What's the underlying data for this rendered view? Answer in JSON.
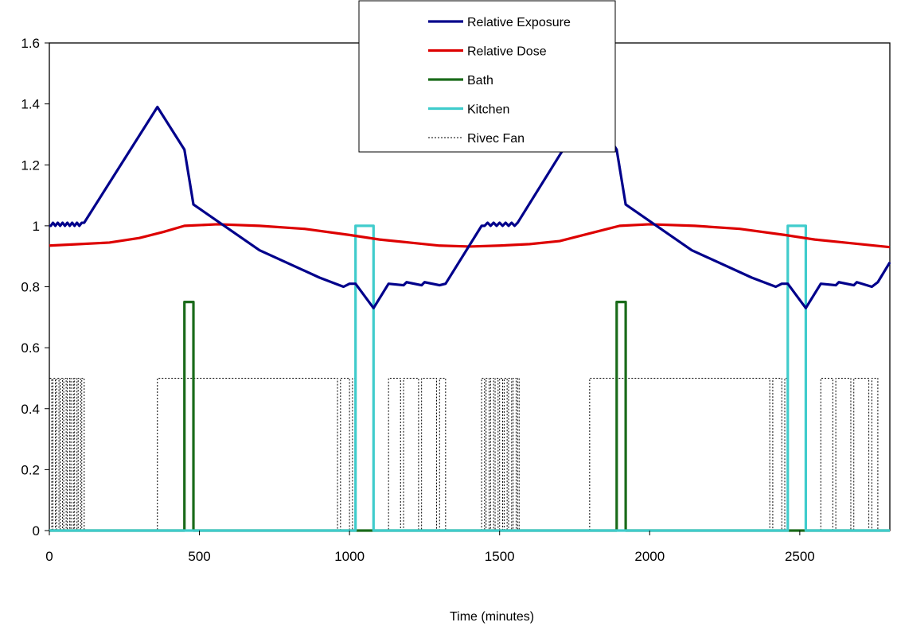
{
  "chart_data": {
    "type": "line",
    "title": "",
    "xlabel": "Time (minutes)",
    "ylabel": "",
    "xlim": [
      0,
      2800
    ],
    "ylim": [
      0,
      1.6
    ],
    "x_ticks": [
      0,
      500,
      1000,
      1500,
      2000,
      2500
    ],
    "y_ticks": [
      0,
      0.2,
      0.4,
      0.6,
      0.8,
      1,
      1.2,
      1.4,
      1.6
    ],
    "grid": false,
    "legend_position": "top-center",
    "series": [
      {
        "name": "Relative Exposure",
        "color": "#00008B",
        "style": "solid",
        "points": [
          [
            0,
            1.0
          ],
          [
            5,
            1.0
          ],
          [
            12,
            1.01
          ],
          [
            20,
            1.0
          ],
          [
            28,
            1.01
          ],
          [
            36,
            1.0
          ],
          [
            44,
            1.01
          ],
          [
            52,
            1.0
          ],
          [
            60,
            1.01
          ],
          [
            68,
            1.0
          ],
          [
            76,
            1.01
          ],
          [
            84,
            1.0
          ],
          [
            92,
            1.01
          ],
          [
            100,
            1.0
          ],
          [
            108,
            1.01
          ],
          [
            116,
            1.01
          ],
          [
            360,
            1.39
          ],
          [
            450,
            1.25
          ],
          [
            480,
            1.07
          ],
          [
            700,
            0.92
          ],
          [
            900,
            0.83
          ],
          [
            980,
            0.8
          ],
          [
            1000,
            0.81
          ],
          [
            1020,
            0.81
          ],
          [
            1080,
            0.73
          ],
          [
            1130,
            0.81
          ],
          [
            1180,
            0.805
          ],
          [
            1190,
            0.815
          ],
          [
            1240,
            0.805
          ],
          [
            1250,
            0.815
          ],
          [
            1300,
            0.805
          ],
          [
            1320,
            0.81
          ],
          [
            1440,
            1.0
          ],
          [
            1450,
            1.0
          ],
          [
            1460,
            1.01
          ],
          [
            1470,
            1.0
          ],
          [
            1480,
            1.01
          ],
          [
            1490,
            1.0
          ],
          [
            1500,
            1.01
          ],
          [
            1510,
            1.0
          ],
          [
            1520,
            1.01
          ],
          [
            1530,
            1.0
          ],
          [
            1540,
            1.01
          ],
          [
            1550,
            1.0
          ],
          [
            1560,
            1.01
          ],
          [
            1800,
            1.39
          ],
          [
            1890,
            1.25
          ],
          [
            1920,
            1.07
          ],
          [
            2140,
            0.92
          ],
          [
            2340,
            0.83
          ],
          [
            2420,
            0.8
          ],
          [
            2440,
            0.81
          ],
          [
            2460,
            0.81
          ],
          [
            2520,
            0.73
          ],
          [
            2570,
            0.81
          ],
          [
            2620,
            0.805
          ],
          [
            2630,
            0.815
          ],
          [
            2680,
            0.805
          ],
          [
            2690,
            0.815
          ],
          [
            2740,
            0.8
          ],
          [
            2760,
            0.815
          ],
          [
            2800,
            0.88
          ]
        ]
      },
      {
        "name": "Relative Dose",
        "color": "#DD0000",
        "style": "solid",
        "points": [
          [
            0,
            0.935
          ],
          [
            100,
            0.94
          ],
          [
            200,
            0.945
          ],
          [
            300,
            0.96
          ],
          [
            380,
            0.98
          ],
          [
            450,
            1.0
          ],
          [
            560,
            1.005
          ],
          [
            700,
            1.0
          ],
          [
            850,
            0.99
          ],
          [
            1000,
            0.97
          ],
          [
            1100,
            0.955
          ],
          [
            1200,
            0.945
          ],
          [
            1300,
            0.935
          ],
          [
            1400,
            0.932
          ],
          [
            1500,
            0.935
          ],
          [
            1600,
            0.94
          ],
          [
            1700,
            0.95
          ],
          [
            1800,
            0.975
          ],
          [
            1900,
            1.0
          ],
          [
            2000,
            1.005
          ],
          [
            2150,
            1.0
          ],
          [
            2300,
            0.99
          ],
          [
            2450,
            0.97
          ],
          [
            2550,
            0.955
          ],
          [
            2650,
            0.945
          ],
          [
            2800,
            0.93
          ]
        ]
      },
      {
        "name": "Bath",
        "color": "#1A6B1A",
        "style": "solid",
        "points": [
          [
            0,
            0
          ],
          [
            450,
            0
          ],
          [
            450,
            0.75
          ],
          [
            480,
            0.75
          ],
          [
            480,
            0
          ],
          [
            1890,
            0
          ],
          [
            1890,
            0.75
          ],
          [
            1920,
            0.75
          ],
          [
            1920,
            0
          ],
          [
            2800,
            0
          ]
        ]
      },
      {
        "name": "Kitchen",
        "color": "#40CCCC",
        "style": "solid",
        "points": [
          [
            0,
            0
          ],
          [
            1020,
            0
          ],
          [
            1020,
            1.0
          ],
          [
            1080,
            1.0
          ],
          [
            1080,
            0
          ],
          [
            2460,
            0
          ],
          [
            2460,
            1.0
          ],
          [
            2520,
            1.0
          ],
          [
            2520,
            0
          ],
          [
            2800,
            0
          ]
        ]
      },
      {
        "name": "Rivec Fan",
        "color": "#000000",
        "style": "dotted",
        "on_value": 0.5,
        "on_intervals": [
          [
            0,
            8
          ],
          [
            12,
            20
          ],
          [
            24,
            32
          ],
          [
            36,
            44
          ],
          [
            48,
            56
          ],
          [
            60,
            68
          ],
          [
            72,
            80
          ],
          [
            84,
            92
          ],
          [
            96,
            104
          ],
          [
            108,
            116
          ],
          [
            360,
            960
          ],
          [
            970,
            1000
          ],
          [
            1010,
            1020
          ],
          [
            1130,
            1170
          ],
          [
            1180,
            1230
          ],
          [
            1240,
            1290
          ],
          [
            1300,
            1320
          ],
          [
            1440,
            1450
          ],
          [
            1455,
            1465
          ],
          [
            1470,
            1480
          ],
          [
            1485,
            1495
          ],
          [
            1500,
            1510
          ],
          [
            1515,
            1525
          ],
          [
            1530,
            1540
          ],
          [
            1545,
            1555
          ],
          [
            1560,
            1565
          ],
          [
            1800,
            2400
          ],
          [
            2410,
            2440
          ],
          [
            2450,
            2460
          ],
          [
            2570,
            2610
          ],
          [
            2620,
            2670
          ],
          [
            2680,
            2730
          ],
          [
            2740,
            2760
          ]
        ]
      }
    ]
  }
}
